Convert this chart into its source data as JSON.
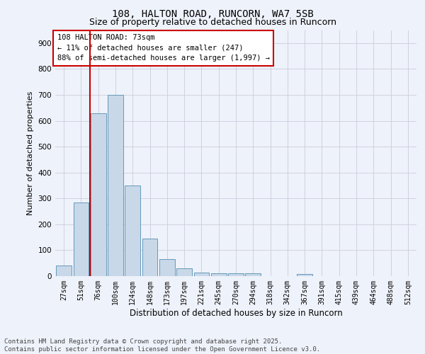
{
  "title1": "108, HALTON ROAD, RUNCORN, WA7 5SB",
  "title2": "Size of property relative to detached houses in Runcorn",
  "xlabel": "Distribution of detached houses by size in Runcorn",
  "ylabel": "Number of detached properties",
  "categories": [
    "27sqm",
    "51sqm",
    "76sqm",
    "100sqm",
    "124sqm",
    "148sqm",
    "173sqm",
    "197sqm",
    "221sqm",
    "245sqm",
    "270sqm",
    "294sqm",
    "318sqm",
    "342sqm",
    "367sqm",
    "391sqm",
    "415sqm",
    "439sqm",
    "464sqm",
    "488sqm",
    "512sqm"
  ],
  "values": [
    42,
    285,
    630,
    700,
    350,
    145,
    65,
    30,
    15,
    11,
    11,
    11,
    0,
    0,
    8,
    0,
    0,
    0,
    0,
    0,
    0
  ],
  "bar_color": "#c8d8e8",
  "bar_edge_color": "#6699bb",
  "background_color": "#eef2fa",
  "grid_color": "#ccccdd",
  "vline_color": "#cc0000",
  "annotation_text": "108 HALTON ROAD: 73sqm\n← 11% of detached houses are smaller (247)\n88% of semi-detached houses are larger (1,997) →",
  "annotation_box_color": "#ffffff",
  "annotation_border_color": "#cc0000",
  "ylim": [
    0,
    950
  ],
  "yticks": [
    0,
    100,
    200,
    300,
    400,
    500,
    600,
    700,
    800,
    900
  ],
  "footer_text": "Contains HM Land Registry data © Crown copyright and database right 2025.\nContains public sector information licensed under the Open Government Licence v3.0."
}
